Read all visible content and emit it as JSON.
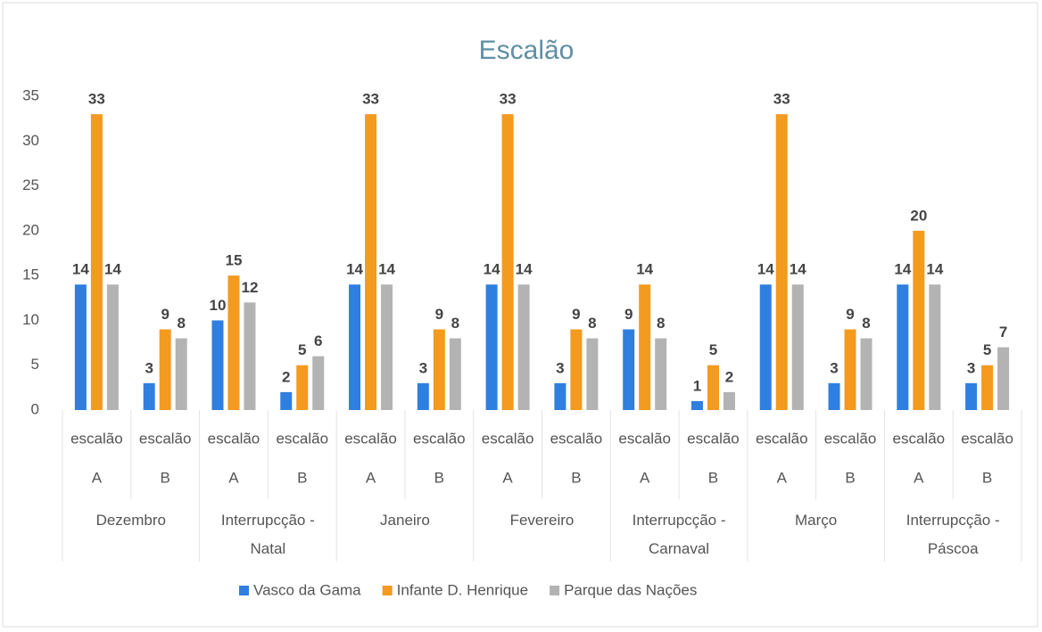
{
  "chart_data": {
    "type": "bar",
    "title": "Escalão",
    "categories": [
      [
        "escalão",
        "A"
      ],
      [
        "escalão",
        "B"
      ],
      [
        "escalão",
        "A"
      ],
      [
        "escalão",
        "B"
      ],
      [
        "escalão",
        "A"
      ],
      [
        "escalão",
        "B"
      ],
      [
        "escalão",
        "A"
      ],
      [
        "escalão",
        "B"
      ],
      [
        "escalão",
        "A"
      ],
      [
        "escalão",
        "B"
      ],
      [
        "escalão",
        "A"
      ],
      [
        "escalão",
        "B"
      ],
      [
        "escalão",
        "A"
      ],
      [
        "escalão",
        "B"
      ]
    ],
    "groups": [
      "Dezembro",
      "Interrupcção - Natal",
      "Janeiro",
      "Fevereiro",
      "Interrupcção - Carnaval",
      "Março",
      "Interrupcção - Páscoa"
    ],
    "series": [
      {
        "name": "Vasco da Gama",
        "color": "#2f7fe0",
        "values": [
          14,
          3,
          10,
          2,
          14,
          3,
          14,
          3,
          9,
          1,
          14,
          3,
          14,
          3
        ]
      },
      {
        "name": "Infante D. Henrique",
        "color": "#f39a1f",
        "values": [
          33,
          9,
          15,
          5,
          33,
          9,
          33,
          9,
          14,
          5,
          33,
          9,
          20,
          5
        ]
      },
      {
        "name": "Parque das Nações",
        "color": "#b3b3b3",
        "values": [
          14,
          8,
          12,
          6,
          14,
          8,
          14,
          8,
          8,
          2,
          14,
          8,
          14,
          7
        ]
      }
    ],
    "ylim": [
      0,
      35
    ],
    "yticks": [
      0,
      5,
      10,
      15,
      20,
      25,
      30,
      35
    ],
    "grid": false,
    "legend": "bottom"
  }
}
